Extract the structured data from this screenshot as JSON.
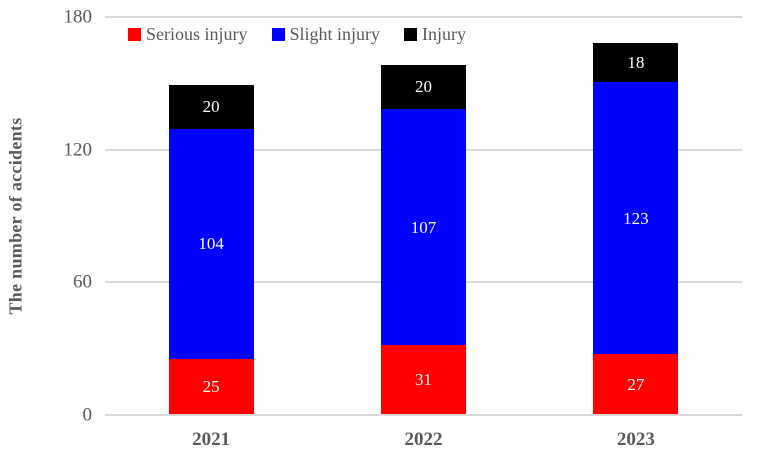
{
  "chart_data": {
    "type": "bar",
    "stacked": true,
    "categories": [
      "2021",
      "2022",
      "2023"
    ],
    "series": [
      {
        "name": "Serious injury",
        "color": "#ff0000",
        "values": [
          25,
          31,
          27
        ]
      },
      {
        "name": "Slight injury",
        "color": "#0000ff",
        "values": [
          104,
          107,
          123
        ]
      },
      {
        "name": "Injury",
        "color": "#000000",
        "values": [
          20,
          20,
          18
        ]
      }
    ],
    "totals": [
      149,
      158,
      168
    ],
    "xlabel": "",
    "ylabel": "The number of accidents",
    "ylim": [
      0,
      180
    ],
    "yticks": [
      0,
      60,
      120,
      180
    ],
    "grid": true,
    "legend_position": "top-left"
  },
  "style": {
    "axis_text_color": "#595959",
    "gridline_color": "#d9d9d9",
    "bar_label_color": "#ffffff",
    "background_color": "#ffffff"
  }
}
